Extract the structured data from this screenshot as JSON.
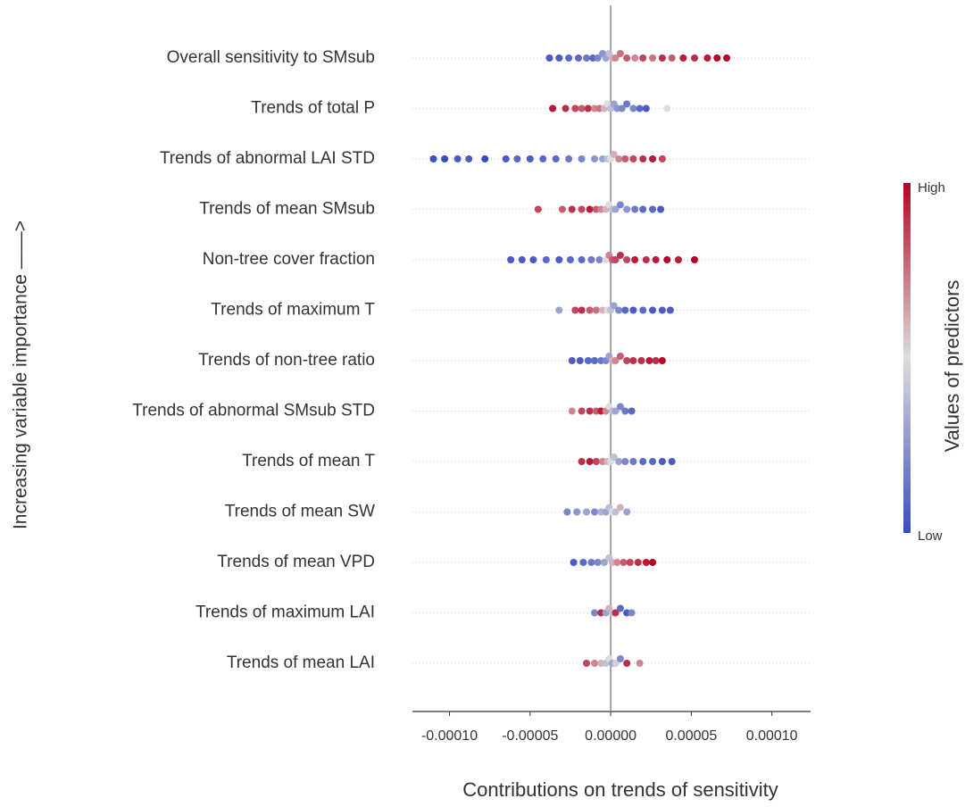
{
  "chart_data": {
    "type": "beeswarm",
    "xlabel": "Contributions on trends of sensitivity",
    "ylabel": "Increasing variable importance ——>",
    "xlim": [
      -0.000123,
      0.000124
    ],
    "xticks": [
      {
        "value": -0.0001,
        "label": "-0.00010"
      },
      {
        "value": -5e-05,
        "label": "-0.00005"
      },
      {
        "value": 0,
        "label": "0.00000"
      },
      {
        "value": 5e-05,
        "label": "0.00005"
      },
      {
        "value": 0.0001,
        "label": "0.00010"
      }
    ],
    "colormap": [
      "#3b4cc0",
      "#dddddd",
      "#b40426"
    ],
    "colorbar": {
      "title": "Values of predictors",
      "high": "High",
      "low": "Low"
    },
    "series": [
      {
        "name": "Overall sensitivity to SMsub",
        "values": [
          -3.8e-05,
          -3.2e-05,
          -2.6e-05,
          -2e-05,
          -1.5e-05,
          -1.1e-05,
          -8e-06,
          -5e-06,
          -3e-06,
          -1e-06,
          1e-06,
          3e-06,
          6e-06,
          1e-05,
          1.5e-05,
          2e-05,
          2.6e-05,
          3.2e-05,
          3.8e-05,
          4.5e-05,
          5.2e-05,
          6e-05,
          6.6e-05,
          7.2e-05
        ],
        "feature_values": [
          0.05,
          0.05,
          0.1,
          0.1,
          0.15,
          0.1,
          0.2,
          0.25,
          0.3,
          0.4,
          0.6,
          0.7,
          0.75,
          0.8,
          0.7,
          0.85,
          0.75,
          0.9,
          0.8,
          0.95,
          0.9,
          0.95,
          1,
          1
        ]
      },
      {
        "name": "Trends of total P",
        "values": [
          -3.6e-05,
          -2.8e-05,
          -2.2e-05,
          -1.8e-05,
          -1.4e-05,
          -1e-05,
          -7e-06,
          -4e-06,
          -2e-06,
          0,
          2e-06,
          4e-06,
          7e-06,
          1e-05,
          1.4e-05,
          1.8e-05,
          2.2e-05,
          3.5e-05
        ],
        "feature_values": [
          0.95,
          0.9,
          0.85,
          0.8,
          0.9,
          0.7,
          0.75,
          0.6,
          0.5,
          0.4,
          0.3,
          0.25,
          0.2,
          0.15,
          0.2,
          0.1,
          0.05,
          0.5
        ]
      },
      {
        "name": "Trends of abnormal LAI STD",
        "values": [
          -0.00011,
          -0.000103,
          -9.5e-05,
          -8.8e-05,
          -7.8e-05,
          -6.5e-05,
          -5.8e-05,
          -5e-05,
          -4.2e-05,
          -3.4e-05,
          -2.6e-05,
          -1.8e-05,
          -1e-05,
          -5e-06,
          -2e-06,
          0,
          2e-06,
          5e-06,
          9e-06,
          1.4e-05,
          2e-05,
          2.6e-05,
          3.2e-05
        ],
        "feature_values": [
          0,
          0,
          0.05,
          0.05,
          0,
          0.05,
          0.1,
          0.05,
          0.1,
          0.1,
          0.15,
          0.2,
          0.25,
          0.3,
          0.4,
          0.5,
          0.6,
          0.7,
          0.8,
          0.85,
          0.9,
          0.95,
          0.85
        ]
      },
      {
        "name": "Trends of mean SMsub",
        "values": [
          -4.5e-05,
          -3e-05,
          -2.4e-05,
          -1.8e-05,
          -1.3e-05,
          -9e-06,
          -6e-06,
          -3e-06,
          -1e-06,
          1e-06,
          3e-06,
          6e-06,
          1e-05,
          1.5e-05,
          2e-05,
          2.6e-05,
          3.1e-05
        ],
        "feature_values": [
          0.85,
          0.8,
          0.9,
          0.85,
          0.95,
          0.8,
          0.7,
          0.6,
          0.5,
          0.4,
          0.3,
          0.2,
          0.25,
          0.15,
          0.1,
          0.1,
          0.05
        ]
      },
      {
        "name": "Non-tree cover fraction",
        "values": [
          -6.2e-05,
          -5.5e-05,
          -4.8e-05,
          -4e-05,
          -3.2e-05,
          -2.5e-05,
          -1.8e-05,
          -1.2e-05,
          -7e-06,
          -3e-06,
          -1e-06,
          1e-06,
          3e-06,
          6e-06,
          1e-05,
          1.5e-05,
          2.2e-05,
          2.8e-05,
          3.5e-05,
          4.2e-05,
          5.2e-05
        ],
        "feature_values": [
          0.05,
          0.05,
          0.05,
          0.1,
          0.05,
          0.1,
          0.1,
          0.15,
          0.2,
          0.5,
          0.7,
          0.8,
          0.85,
          0.9,
          0.85,
          0.95,
          0.9,
          0.95,
          1,
          0.95,
          1
        ]
      },
      {
        "name": "Trends of maximum T",
        "values": [
          -3.2e-05,
          -2.2e-05,
          -1.8e-05,
          -1.3e-05,
          -9e-06,
          -5e-06,
          -2e-06,
          0,
          2e-06,
          5e-06,
          9e-06,
          1.4e-05,
          2e-05,
          2.6e-05,
          3.2e-05,
          3.7e-05
        ],
        "feature_values": [
          0.3,
          0.85,
          0.9,
          0.8,
          0.75,
          0.6,
          0.5,
          0.4,
          0.3,
          0.2,
          0.1,
          0.05,
          0.1,
          0.05,
          0.05,
          0.05
        ]
      },
      {
        "name": "Trends of non-tree ratio",
        "values": [
          -2.4e-05,
          -1.9e-05,
          -1.4e-05,
          -1e-05,
          -6e-06,
          -3e-06,
          -1e-06,
          1e-06,
          3e-06,
          6e-06,
          1e-05,
          1.4e-05,
          1.9e-05,
          2.4e-05,
          2.8e-05,
          3.2e-05
        ],
        "feature_values": [
          0.05,
          0.05,
          0.1,
          0.1,
          0.15,
          0.2,
          0.3,
          0.6,
          0.7,
          0.8,
          0.85,
          0.9,
          0.9,
          0.95,
          0.9,
          1
        ]
      },
      {
        "name": "Trends of abnormal SMsub STD",
        "values": [
          -2.4e-05,
          -1.8e-05,
          -1.3e-05,
          -9e-06,
          -6e-06,
          -3e-06,
          -1e-06,
          1e-06,
          3e-06,
          6e-06,
          9e-06,
          1.3e-05
        ],
        "feature_values": [
          0.7,
          0.85,
          0.9,
          0.8,
          0.95,
          0.7,
          0.5,
          0.4,
          0.3,
          0.2,
          0.15,
          0.1
        ]
      },
      {
        "name": "Trends of mean T",
        "values": [
          -1.8e-05,
          -1.3e-05,
          -9e-06,
          -5e-06,
          -2e-06,
          0,
          2e-06,
          5e-06,
          9e-06,
          1.4e-05,
          2e-05,
          2.6e-05,
          3.2e-05,
          3.8e-05
        ],
        "feature_values": [
          0.9,
          0.95,
          0.85,
          0.7,
          0.6,
          0.5,
          0.4,
          0.3,
          0.2,
          0.15,
          0.1,
          0.1,
          0.05,
          0.05
        ]
      },
      {
        "name": "Trends of mean SW",
        "values": [
          -2.7e-05,
          -2.1e-05,
          -1.5e-05,
          -1e-05,
          -6e-06,
          -3e-06,
          -1e-06,
          1e-06,
          3e-06,
          6e-06,
          1e-05
        ],
        "feature_values": [
          0.2,
          0.25,
          0.3,
          0.2,
          0.35,
          0.3,
          0.4,
          0.5,
          0.4,
          0.6,
          0.3
        ]
      },
      {
        "name": "Trends of mean VPD",
        "values": [
          -2.3e-05,
          -1.7e-05,
          -1.2e-05,
          -8e-06,
          -4e-06,
          -1e-06,
          1e-06,
          4e-06,
          8e-06,
          1.2e-05,
          1.7e-05,
          2.2e-05,
          2.6e-05
        ],
        "feature_values": [
          0.05,
          0.1,
          0.15,
          0.2,
          0.3,
          0.4,
          0.6,
          0.7,
          0.8,
          0.85,
          0.9,
          0.95,
          1
        ]
      },
      {
        "name": "Trends of maximum LAI",
        "values": [
          -1e-05,
          -6e-06,
          -3e-06,
          -1e-06,
          1e-06,
          3e-06,
          6e-06,
          1e-05,
          1.3e-05
        ],
        "feature_values": [
          0.2,
          0.9,
          0.3,
          0.6,
          0.4,
          0.9,
          0.1,
          0.05,
          0.2
        ]
      },
      {
        "name": "Trends of mean LAI",
        "values": [
          -1.5e-05,
          -1e-05,
          -6e-06,
          -3e-06,
          -1e-06,
          1e-06,
          3e-06,
          6e-06,
          1e-05,
          1.8e-05
        ],
        "feature_values": [
          0.85,
          0.7,
          0.6,
          0.4,
          0.5,
          0.3,
          0.45,
          0.2,
          0.9,
          0.7
        ]
      }
    ]
  }
}
